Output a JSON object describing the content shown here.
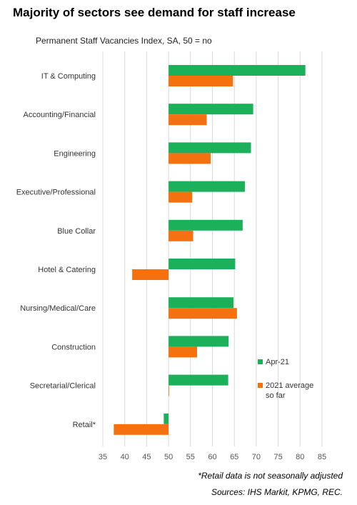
{
  "title": "Majority of sectors see demand for staff increase",
  "subtitle": "Permanent Staff Vacancies Index, SA, 50 = no",
  "footnotes": {
    "retail_note": "*Retail data is not seasonally adjusted",
    "sources": "Sources: IHS Markit, KPMG, REC."
  },
  "colors": {
    "apr21": "#1bb15a",
    "avg2021": "#f5700f",
    "grid": "#d9d9d9",
    "axis_text": "#555555"
  },
  "chart_data": {
    "type": "bar",
    "orientation": "horizontal",
    "baseline": 50,
    "categories": [
      "IT & Computing",
      "Accounting/Financial",
      "Engineering",
      "Executive/Professional",
      "Blue Collar",
      "Hotel & Catering",
      "Nursing/Medical/Care",
      "Construction",
      "Secretarial/Clerical",
      "Retail*"
    ],
    "series": [
      {
        "name": "Apr-21",
        "values": [
          81.2,
          69.3,
          68.8,
          67.4,
          66.9,
          65.2,
          64.8,
          63.7,
          63.6,
          48.9
        ]
      },
      {
        "name": "2021 average so far",
        "values": [
          64.7,
          58.7,
          59.6,
          55.4,
          55.6,
          41.7,
          65.6,
          56.5,
          50.1,
          37.5
        ]
      }
    ],
    "xticks": [
      35,
      40,
      45,
      50,
      55,
      60,
      65,
      70,
      75,
      80,
      85
    ],
    "xlim": [
      35,
      85
    ],
    "grid": true,
    "legend": {
      "position": "right"
    }
  }
}
